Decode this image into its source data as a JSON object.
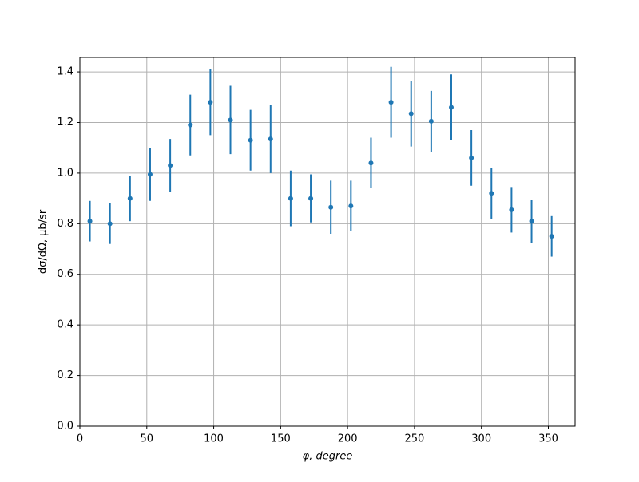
{
  "chart_data": {
    "type": "errorbar",
    "xlabel": "φ, degree",
    "ylabel": "dσ/dΩ, μb/sr",
    "x": [
      7.5,
      22.5,
      37.5,
      52.5,
      67.5,
      82.5,
      97.5,
      112.5,
      127.5,
      142.5,
      157.5,
      172.5,
      187.5,
      202.5,
      217.5,
      232.5,
      247.5,
      262.5,
      277.5,
      292.5,
      307.5,
      322.5,
      337.5,
      352.5
    ],
    "values": [
      0.81,
      0.8,
      0.9,
      0.995,
      1.03,
      1.19,
      1.28,
      1.21,
      1.13,
      1.135,
      0.9,
      0.9,
      0.865,
      0.87,
      1.04,
      1.28,
      1.235,
      1.205,
      1.26,
      1.06,
      0.92,
      0.855,
      0.81,
      0.75
    ],
    "errors": [
      0.08,
      0.08,
      0.09,
      0.105,
      0.105,
      0.12,
      0.13,
      0.135,
      0.12,
      0.135,
      0.11,
      0.095,
      0.105,
      0.1,
      0.1,
      0.14,
      0.13,
      0.12,
      0.13,
      0.11,
      0.1,
      0.09,
      0.085,
      0.08
    ],
    "color": "#1f77b4",
    "xlim": [
      0,
      370
    ],
    "xticks": [
      0,
      50,
      100,
      150,
      200,
      250,
      300,
      350
    ],
    "ylim": [
      0,
      1.457
    ],
    "yticks": [
      {
        "value": 0,
        "label": "0.0"
      },
      0.2,
      0.4,
      0.6,
      0.8,
      {
        "value": 1,
        "label": "1.0"
      },
      1.2,
      1.4
    ],
    "grid": true
  }
}
